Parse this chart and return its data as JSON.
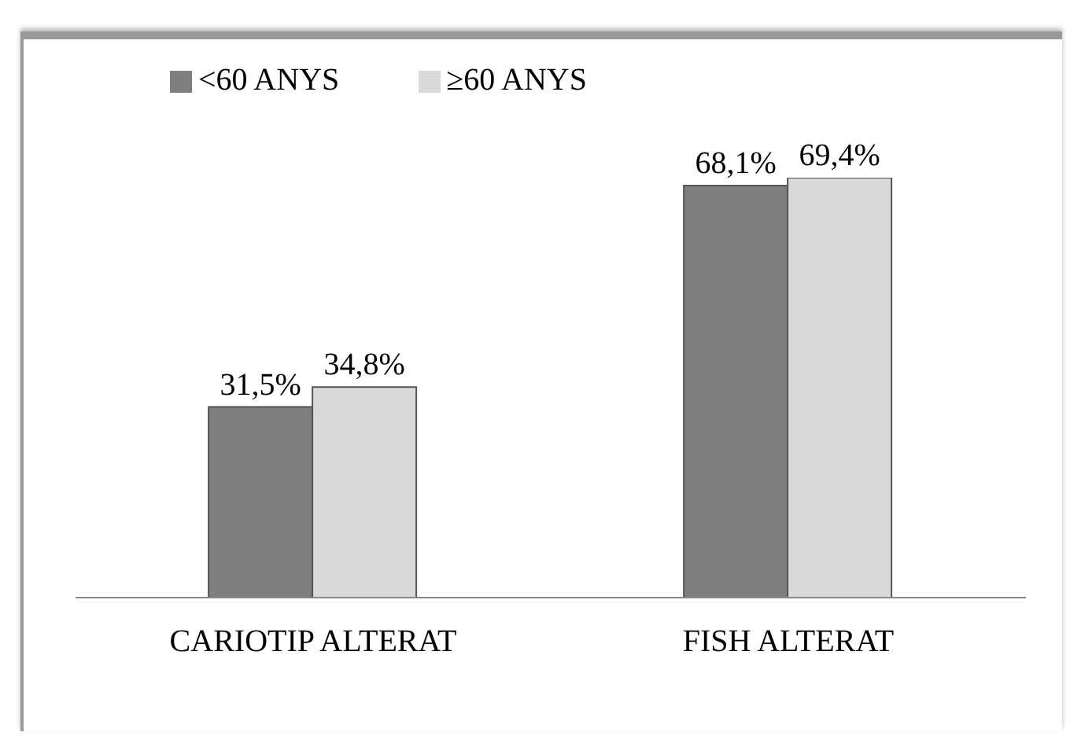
{
  "chart_data": {
    "type": "bar",
    "categories": [
      "CARIOTIP ALTERAT",
      "FISH ALTERAT"
    ],
    "series": [
      {
        "name": "<60 ANYS",
        "color": "#7f7f7f",
        "values": [
          31.5,
          68.1
        ],
        "value_labels": [
          "31,5%",
          "68,1%"
        ]
      },
      {
        "name": "≥60 ANYS",
        "color": "#d9d9d9",
        "values": [
          34.8,
          69.4
        ],
        "value_labels": [
          "34,8%",
          "69,4%"
        ]
      }
    ],
    "legend": "top left",
    "grid": false
  }
}
